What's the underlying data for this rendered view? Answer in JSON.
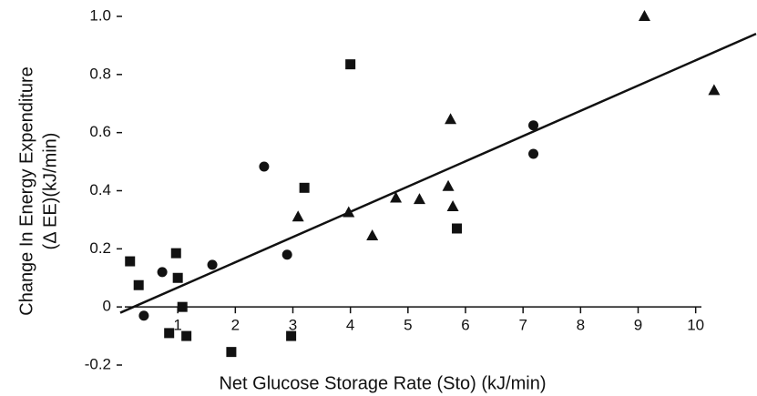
{
  "chart_data": {
    "type": "scatter",
    "xlabel": "Net Glucose Storage Rate (Sto) (kJ/min)",
    "ylabel": [
      "Change In Energy Expenditure",
      "(Δ EE)(kJ/min)"
    ],
    "xlim": [
      0,
      11.05
    ],
    "ylim": [
      -0.2,
      1.0
    ],
    "xticks": [
      1,
      2,
      3,
      4,
      5,
      6,
      7,
      8,
      9,
      10
    ],
    "yticks": [
      -0.2,
      0,
      0.2,
      0.4,
      0.6,
      0.8,
      {
        "value": 1.0,
        "label": "1.0"
      }
    ],
    "series": [
      {
        "marker": "square",
        "color": "#111111",
        "x": [
          0.17,
          0.32,
          0.97,
          1.0,
          1.08,
          0.85,
          1.15,
          1.93,
          2.97,
          3.2,
          4.0,
          5.85
        ],
        "values": [
          0.157,
          0.075,
          0.185,
          0.1,
          0.0,
          -0.09,
          -0.1,
          -0.155,
          -0.1,
          0.41,
          0.835,
          0.27
        ]
      },
      {
        "marker": "circle",
        "color": "#111111",
        "x": [
          0.41,
          0.73,
          1.6,
          2.5,
          2.9,
          7.18,
          7.18
        ],
        "values": [
          -0.03,
          0.12,
          0.145,
          0.483,
          0.18,
          0.625,
          0.527
        ]
      },
      {
        "marker": "triangle",
        "color": "#111111",
        "x": [
          3.09,
          3.97,
          4.38,
          4.79,
          5.2,
          5.74,
          5.7,
          5.78,
          9.11,
          10.32
        ],
        "values": [
          0.31,
          0.325,
          0.245,
          0.375,
          0.37,
          0.645,
          0.415,
          0.345,
          1.0,
          0.745
        ]
      }
    ],
    "regression": {
      "x": [
        0,
        11.05
      ],
      "y": [
        -0.02,
        0.94
      ]
    }
  }
}
